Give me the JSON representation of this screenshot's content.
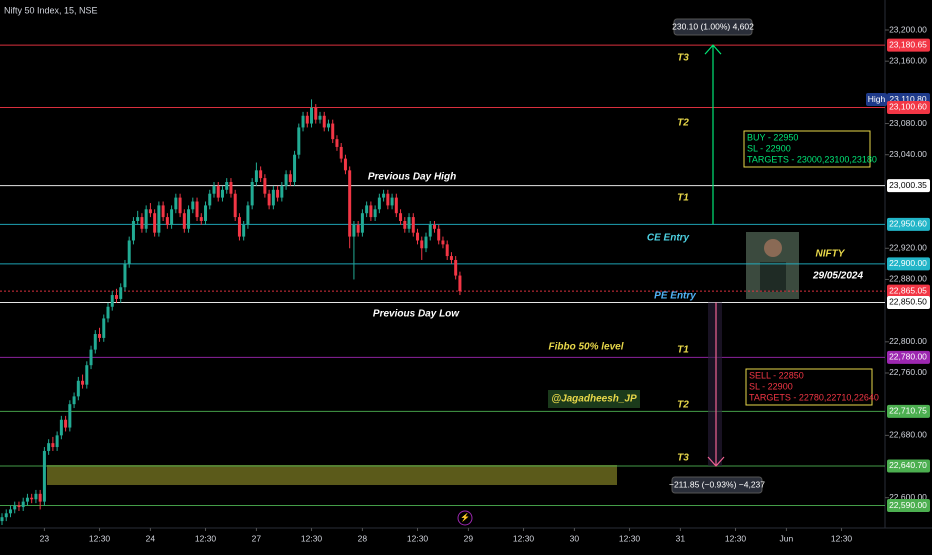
{
  "chart_data": {
    "type": "candlestick",
    "title": "Nifty 50 Index, 15, NSE",
    "ylim": [
      22565,
      23238.5
    ],
    "xlim": [
      0,
      208
    ],
    "yticks": [
      {
        "value": 23200,
        "label": "23,200.00"
      },
      {
        "value": 23160,
        "label": "23,160.00"
      },
      {
        "value": 23080,
        "label": "23,080.00"
      },
      {
        "value": 23040,
        "label": "23,040.00"
      },
      {
        "value": 22920,
        "label": "22,920.00"
      },
      {
        "value": 22880,
        "label": "22,880.00"
      },
      {
        "value": 22800,
        "label": "22,800.00"
      },
      {
        "value": 22760,
        "label": "22,760.00"
      },
      {
        "value": 22680,
        "label": "22,680.00"
      },
      {
        "value": 22600,
        "label": "22,600.00"
      }
    ],
    "xticks": [
      {
        "value": 10,
        "label": "23"
      },
      {
        "value": 23,
        "label": "12:30"
      },
      {
        "value": 35,
        "label": "24"
      },
      {
        "value": 48,
        "label": "12:30"
      },
      {
        "value": 60,
        "label": "27"
      },
      {
        "value": 73,
        "label": "12:30"
      },
      {
        "value": 85,
        "label": "28"
      },
      {
        "value": 98,
        "label": "12:30"
      },
      {
        "value": 110,
        "label": "29"
      },
      {
        "value": 123,
        "label": "12:30"
      },
      {
        "value": 135,
        "label": "30"
      },
      {
        "value": 148,
        "label": "12:30"
      },
      {
        "value": 160,
        "label": "31"
      },
      {
        "value": 173,
        "label": "12:30"
      },
      {
        "value": 185,
        "label": "Jun"
      },
      {
        "value": 198,
        "label": "12:30"
      }
    ],
    "up_color": "#22ab94",
    "down_color": "#f23645",
    "candles": [
      [
        22570,
        22580,
        22565,
        22575
      ],
      [
        22575,
        22585,
        22570,
        22580
      ],
      [
        22580,
        22590,
        22575,
        22585
      ],
      [
        22585,
        22595,
        22580,
        22590
      ],
      [
        22590,
        22595,
        22583,
        22588
      ],
      [
        22588,
        22600,
        22583,
        22595
      ],
      [
        22595,
        22605,
        22590,
        22600
      ],
      [
        22600,
        22605,
        22593,
        22598
      ],
      [
        22598,
        22610,
        22593,
        22605
      ],
      [
        22605,
        22610,
        22585,
        22595
      ],
      [
        22595,
        22665,
        22590,
        22660
      ],
      [
        22660,
        22675,
        22655,
        22670
      ],
      [
        22670,
        22678,
        22660,
        22665
      ],
      [
        22665,
        22685,
        22660,
        22680
      ],
      [
        22680,
        22705,
        22675,
        22700
      ],
      [
        22700,
        22705,
        22685,
        22690
      ],
      [
        22690,
        22725,
        22685,
        22720
      ],
      [
        22720,
        22735,
        22715,
        22730
      ],
      [
        22730,
        22755,
        22725,
        22750
      ],
      [
        22750,
        22758,
        22740,
        22745
      ],
      [
        22745,
        22775,
        22740,
        22770
      ],
      [
        22770,
        22795,
        22765,
        22790
      ],
      [
        22790,
        22815,
        22785,
        22810
      ],
      [
        22810,
        22818,
        22800,
        22805
      ],
      [
        22805,
        22835,
        22800,
        22830
      ],
      [
        22830,
        22850,
        22825,
        22845
      ],
      [
        22845,
        22865,
        22840,
        22860
      ],
      [
        22860,
        22868,
        22850,
        22855
      ],
      [
        22855,
        22875,
        22850,
        22870
      ],
      [
        22870,
        22905,
        22865,
        22900
      ],
      [
        22900,
        22935,
        22895,
        22930
      ],
      [
        22930,
        22960,
        22925,
        22955
      ],
      [
        22955,
        22968,
        22950,
        22960
      ],
      [
        22960,
        22965,
        22940,
        22945
      ],
      [
        22945,
        22975,
        22940,
        22970
      ],
      [
        22970,
        22978,
        22960,
        22965
      ],
      [
        22965,
        22970,
        22935,
        22940
      ],
      [
        22940,
        22980,
        22935,
        22975
      ],
      [
        22975,
        22980,
        22955,
        22960
      ],
      [
        22960,
        22965,
        22945,
        22950
      ],
      [
        22950,
        22975,
        22945,
        22970
      ],
      [
        22970,
        22990,
        22965,
        22985
      ],
      [
        22985,
        22990,
        22960,
        22965
      ],
      [
        22965,
        22970,
        22940,
        22945
      ],
      [
        22945,
        22975,
        22940,
        22970
      ],
      [
        22970,
        22985,
        22965,
        22980
      ],
      [
        22980,
        22985,
        22955,
        22960
      ],
      [
        22960,
        22965,
        22950,
        22955
      ],
      [
        22955,
        22980,
        22950,
        22975
      ],
      [
        22975,
        22995,
        22970,
        22990
      ],
      [
        22990,
        23005,
        22985,
        23000
      ],
      [
        23000,
        23005,
        22980,
        22985
      ],
      [
        22985,
        23000,
        22980,
        22995
      ],
      [
        22995,
        23010,
        22990,
        23005
      ],
      [
        23005,
        23010,
        22985,
        22990
      ],
      [
        22990,
        22995,
        22955,
        22960
      ],
      [
        22960,
        22965,
        22930,
        22935
      ],
      [
        22935,
        22955,
        22930,
        22950
      ],
      [
        22950,
        22980,
        22945,
        22975
      ],
      [
        22975,
        23010,
        22970,
        23005
      ],
      [
        23005,
        23030,
        23000,
        23020
      ],
      [
        23020,
        23025,
        23005,
        23010
      ],
      [
        23010,
        23015,
        22985,
        22990
      ],
      [
        22990,
        22995,
        22970,
        22975
      ],
      [
        22975,
        23000,
        22970,
        22995
      ],
      [
        22995,
        23000,
        22980,
        22985
      ],
      [
        22985,
        23005,
        22980,
        23000
      ],
      [
        23000,
        23020,
        22995,
        23015
      ],
      [
        23015,
        23020,
        23000,
        23005
      ],
      [
        23005,
        23045,
        23000,
        23040
      ],
      [
        23040,
        23080,
        23035,
        23075
      ],
      [
        23075,
        23095,
        23070,
        23090
      ],
      [
        23090,
        23095,
        23075,
        23080
      ],
      [
        23080,
        23111,
        23075,
        23100
      ],
      [
        23100,
        23105,
        23080,
        23085
      ],
      [
        23085,
        23095,
        23080,
        23090
      ],
      [
        23090,
        23095,
        23070,
        23075
      ],
      [
        23075,
        23085,
        23070,
        23080
      ],
      [
        23080,
        23085,
        23055,
        23060
      ],
      [
        23060,
        23065,
        23045,
        23050
      ],
      [
        23050,
        23055,
        23030,
        23035
      ],
      [
        23035,
        23040,
        23015,
        23020
      ],
      [
        23020,
        23025,
        22920,
        22935
      ],
      [
        22935,
        22955,
        22880,
        22950
      ],
      [
        22950,
        22955,
        22935,
        22940
      ],
      [
        22940,
        22970,
        22935,
        22965
      ],
      [
        22965,
        22980,
        22960,
        22975
      ],
      [
        22975,
        22980,
        22955,
        22960
      ],
      [
        22960,
        22975,
        22955,
        22970
      ],
      [
        22970,
        22990,
        22965,
        22985
      ],
      [
        22985,
        22995,
        22980,
        22990
      ],
      [
        22990,
        22995,
        22970,
        22975
      ],
      [
        22975,
        22990,
        22970,
        22985
      ],
      [
        22985,
        22990,
        22960,
        22965
      ],
      [
        22965,
        22970,
        22950,
        22955
      ],
      [
        22955,
        22960,
        22940,
        22945
      ],
      [
        22945,
        22965,
        22940,
        22960
      ],
      [
        22960,
        22965,
        22935,
        22940
      ],
      [
        22940,
        22945,
        22925,
        22930
      ],
      [
        22930,
        22935,
        22905,
        22920
      ],
      [
        22920,
        22940,
        22915,
        22935
      ],
      [
        22935,
        22955,
        22930,
        22950
      ],
      [
        22950,
        22955,
        22940,
        22945
      ],
      [
        22945,
        22950,
        22925,
        22930
      ],
      [
        22930,
        22935,
        22920,
        22925
      ],
      [
        22925,
        22930,
        22905,
        22910
      ],
      [
        22910,
        22915,
        22900,
        22905
      ],
      [
        22905,
        22910,
        22880,
        22885
      ],
      [
        22885,
        22890,
        22860,
        22865
      ]
    ],
    "levels": [
      {
        "value": 23180.65,
        "label": "23,180.65",
        "color": "#f23645"
      },
      {
        "value": 23110.8,
        "label": "23,110.80",
        "color": "#1e3a8a",
        "tag": "High"
      },
      {
        "value": 23100.6,
        "label": "23,100.60",
        "color": "#f23645"
      },
      {
        "value": 23000.35,
        "label": "23,000.35",
        "color": "#ffffff"
      },
      {
        "value": 22950.6,
        "label": "22,950.60",
        "color": "#22b5c8"
      },
      {
        "value": 22900,
        "label": "22,900.00",
        "color": "#22b5c8"
      },
      {
        "value": 22865.05,
        "label": "22,865.05",
        "color": "#f23645"
      },
      {
        "value": 22850.5,
        "label": "22,850.50",
        "color": "#ffffff"
      },
      {
        "value": 22780,
        "label": "22,780.00",
        "color": "#9c27b0"
      },
      {
        "value": 22710.75,
        "label": "22,710.75",
        "color": "#4caf50"
      },
      {
        "value": 22640.7,
        "label": "22,640.70",
        "color": "#4caf50"
      },
      {
        "value": 22590,
        "label": "22,590.00",
        "color": "#4caf50"
      }
    ],
    "annotations": [
      {
        "text": "T3",
        "color": "#e8d84a"
      },
      {
        "text": "T2",
        "color": "#e8d84a"
      },
      {
        "text": "Previous Day High",
        "color": "#ffffff"
      },
      {
        "text": "T1",
        "color": "#e8d84a"
      },
      {
        "text": "CE Entry",
        "color": "#4dd0e1"
      },
      {
        "text": "PE Entry",
        "color": "#4fb3f7"
      },
      {
        "text": "Previous Day Low",
        "color": "#ffffff"
      },
      {
        "text": "Fibbo 50% level",
        "color": "#e8d84a"
      },
      {
        "text": "T1",
        "color": "#e8d84a"
      },
      {
        "text": "T2",
        "color": "#e8d84a"
      },
      {
        "text": "T3",
        "color": "#e8d84a"
      },
      {
        "text": "@Jagadheesh_JP",
        "color": "#e8d84a"
      },
      {
        "text": "NIFTY",
        "color": "#e8d84a"
      },
      {
        "text": "29/05/2024",
        "color": "#ffffff"
      }
    ],
    "buy_box": [
      "BUY - 22950",
      "SL - 22900",
      "TARGETS - 23000,23100,23180"
    ],
    "sell_box": [
      "SELL - 22850",
      "SL - 22900",
      "TARGETS - 22780,22710,22640"
    ],
    "measure_up": "230.10 (1.00%) 4,602",
    "measure_down": "−211.85 (−0.93%) −4,237"
  }
}
